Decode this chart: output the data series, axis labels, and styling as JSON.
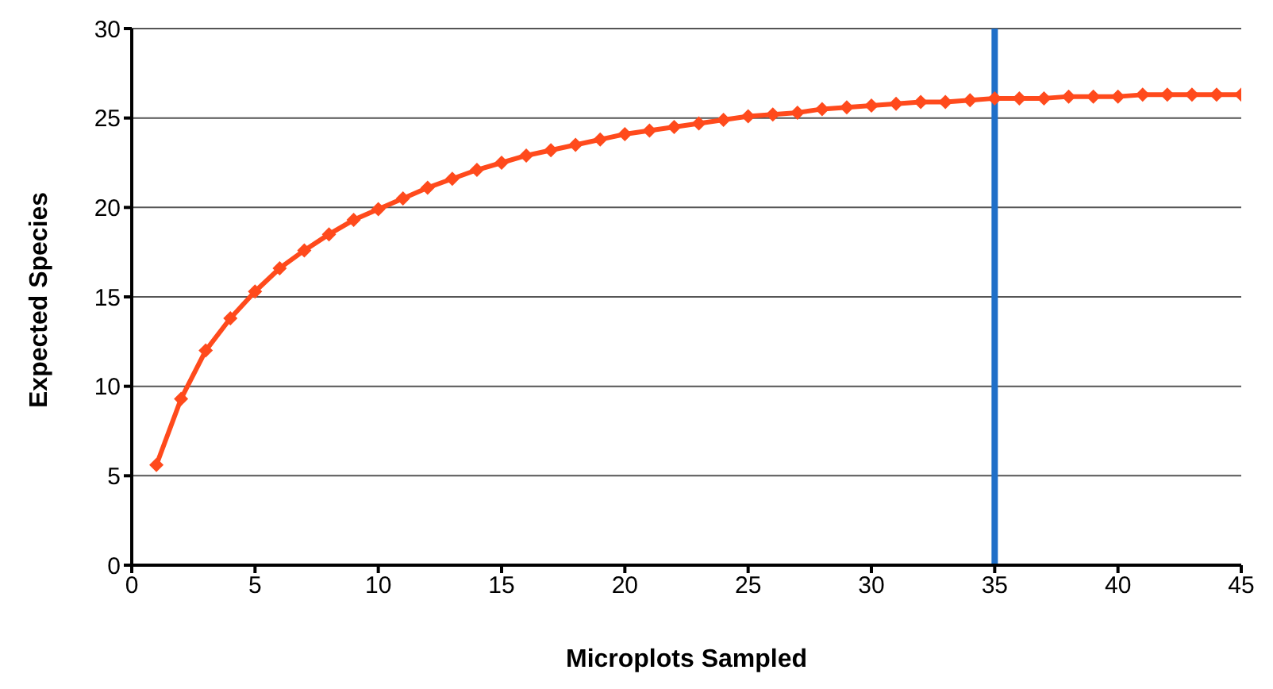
{
  "chart_data": {
    "type": "line",
    "xlabel": "Microplots Sampled",
    "ylabel": "Expected Species",
    "x": [
      1,
      2,
      3,
      4,
      5,
      6,
      7,
      8,
      9,
      10,
      11,
      12,
      13,
      14,
      15,
      16,
      17,
      18,
      19,
      20,
      21,
      22,
      23,
      24,
      25,
      26,
      27,
      28,
      29,
      30,
      31,
      32,
      33,
      34,
      35,
      36,
      37,
      38,
      39,
      40,
      41,
      42,
      43,
      44,
      45
    ],
    "series": [
      {
        "color": "#ff4a1c",
        "values": [
          5.6,
          9.3,
          12.0,
          13.8,
          15.3,
          16.6,
          17.6,
          18.5,
          19.3,
          19.9,
          20.5,
          21.1,
          21.6,
          22.1,
          22.5,
          22.9,
          23.2,
          23.5,
          23.8,
          24.1,
          24.3,
          24.5,
          24.7,
          24.9,
          25.1,
          25.2,
          25.3,
          25.5,
          25.6,
          25.7,
          25.8,
          25.9,
          25.9,
          26.0,
          26.1,
          26.1,
          26.1,
          26.2,
          26.2,
          26.2,
          26.3,
          26.3,
          26.3,
          26.3,
          26.3
        ]
      }
    ],
    "xlim": [
      0,
      45
    ],
    "xticks": [
      0,
      5,
      10,
      15,
      20,
      25,
      30,
      35,
      40,
      45
    ],
    "ylim": [
      0,
      30
    ],
    "yticks": [
      0,
      5,
      10,
      15,
      20,
      25,
      30
    ],
    "grid": "y",
    "legend": false,
    "marker": "diamond",
    "line_style": "solid",
    "ref_lines": [
      {
        "axis": "x",
        "value": 35,
        "color": "#1f6fc8",
        "line_style": "solid"
      }
    ]
  }
}
